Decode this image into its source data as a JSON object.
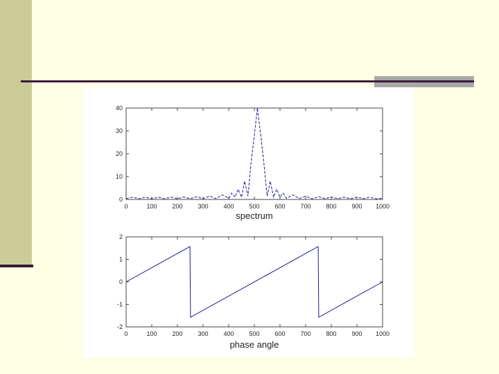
{
  "slide": {
    "bg_color": "#FFFFE5",
    "sidebar_color": "#CCCC99",
    "rule_color": "#3a1a3a",
    "accent_color": "#A8A8A8"
  },
  "chart_data": [
    {
      "type": "line",
      "xlabel": "spectrum",
      "xlim": [
        0,
        1000
      ],
      "ylim": [
        0,
        40
      ],
      "x_ticks": [
        0,
        100,
        200,
        300,
        400,
        500,
        600,
        700,
        800,
        900,
        1000
      ],
      "y_ticks": [
        0,
        10,
        20,
        30,
        40
      ],
      "y_tick_labels": [
        "0",
        "10",
        "20",
        "30",
        "40"
      ],
      "line_color": "#1a1a8c",
      "line_style": "dashed",
      "grid": false,
      "x": [
        0,
        25,
        50,
        75,
        100,
        125,
        150,
        175,
        200,
        225,
        250,
        275,
        300,
        325,
        350,
        375,
        400,
        412,
        425,
        437,
        450,
        462,
        475,
        487,
        500,
        512,
        525,
        537,
        550,
        562,
        575,
        587,
        600,
        612,
        625,
        650,
        675,
        700,
        725,
        750,
        775,
        800,
        825,
        850,
        875,
        900,
        925,
        950,
        975,
        1000
      ],
      "y": [
        0.3,
        1,
        0.3,
        1,
        0.3,
        1,
        0.3,
        1,
        0.3,
        1.1,
        0.3,
        1.2,
        0.3,
        1.5,
        0.4,
        2,
        0.5,
        2.8,
        1,
        4.5,
        1,
        8,
        1.5,
        16,
        28,
        40,
        28,
        16,
        1.5,
        8,
        1,
        4.5,
        1,
        2.8,
        0.5,
        2,
        0.4,
        1.5,
        0.3,
        1.2,
        0.3,
        1.1,
        0.3,
        1,
        0.3,
        1,
        0.3,
        1,
        0.3,
        0.5
      ]
    },
    {
      "type": "line",
      "xlabel": "phase angle",
      "xlim": [
        0,
        1000
      ],
      "ylim": [
        -2,
        2
      ],
      "x_ticks": [
        0,
        100,
        200,
        300,
        400,
        500,
        600,
        700,
        800,
        900,
        1000
      ],
      "y_ticks": [
        -2,
        -1,
        0,
        1,
        2
      ],
      "y_tick_labels": [
        "-2",
        "-1",
        "0",
        "1",
        "2"
      ],
      "line_color": "#1a1a8c",
      "line_style": "solid",
      "grid": false,
      "x": [
        0,
        249,
        251,
        749,
        751,
        1000
      ],
      "y": [
        0,
        1.57,
        -1.57,
        1.57,
        -1.57,
        0
      ]
    }
  ]
}
